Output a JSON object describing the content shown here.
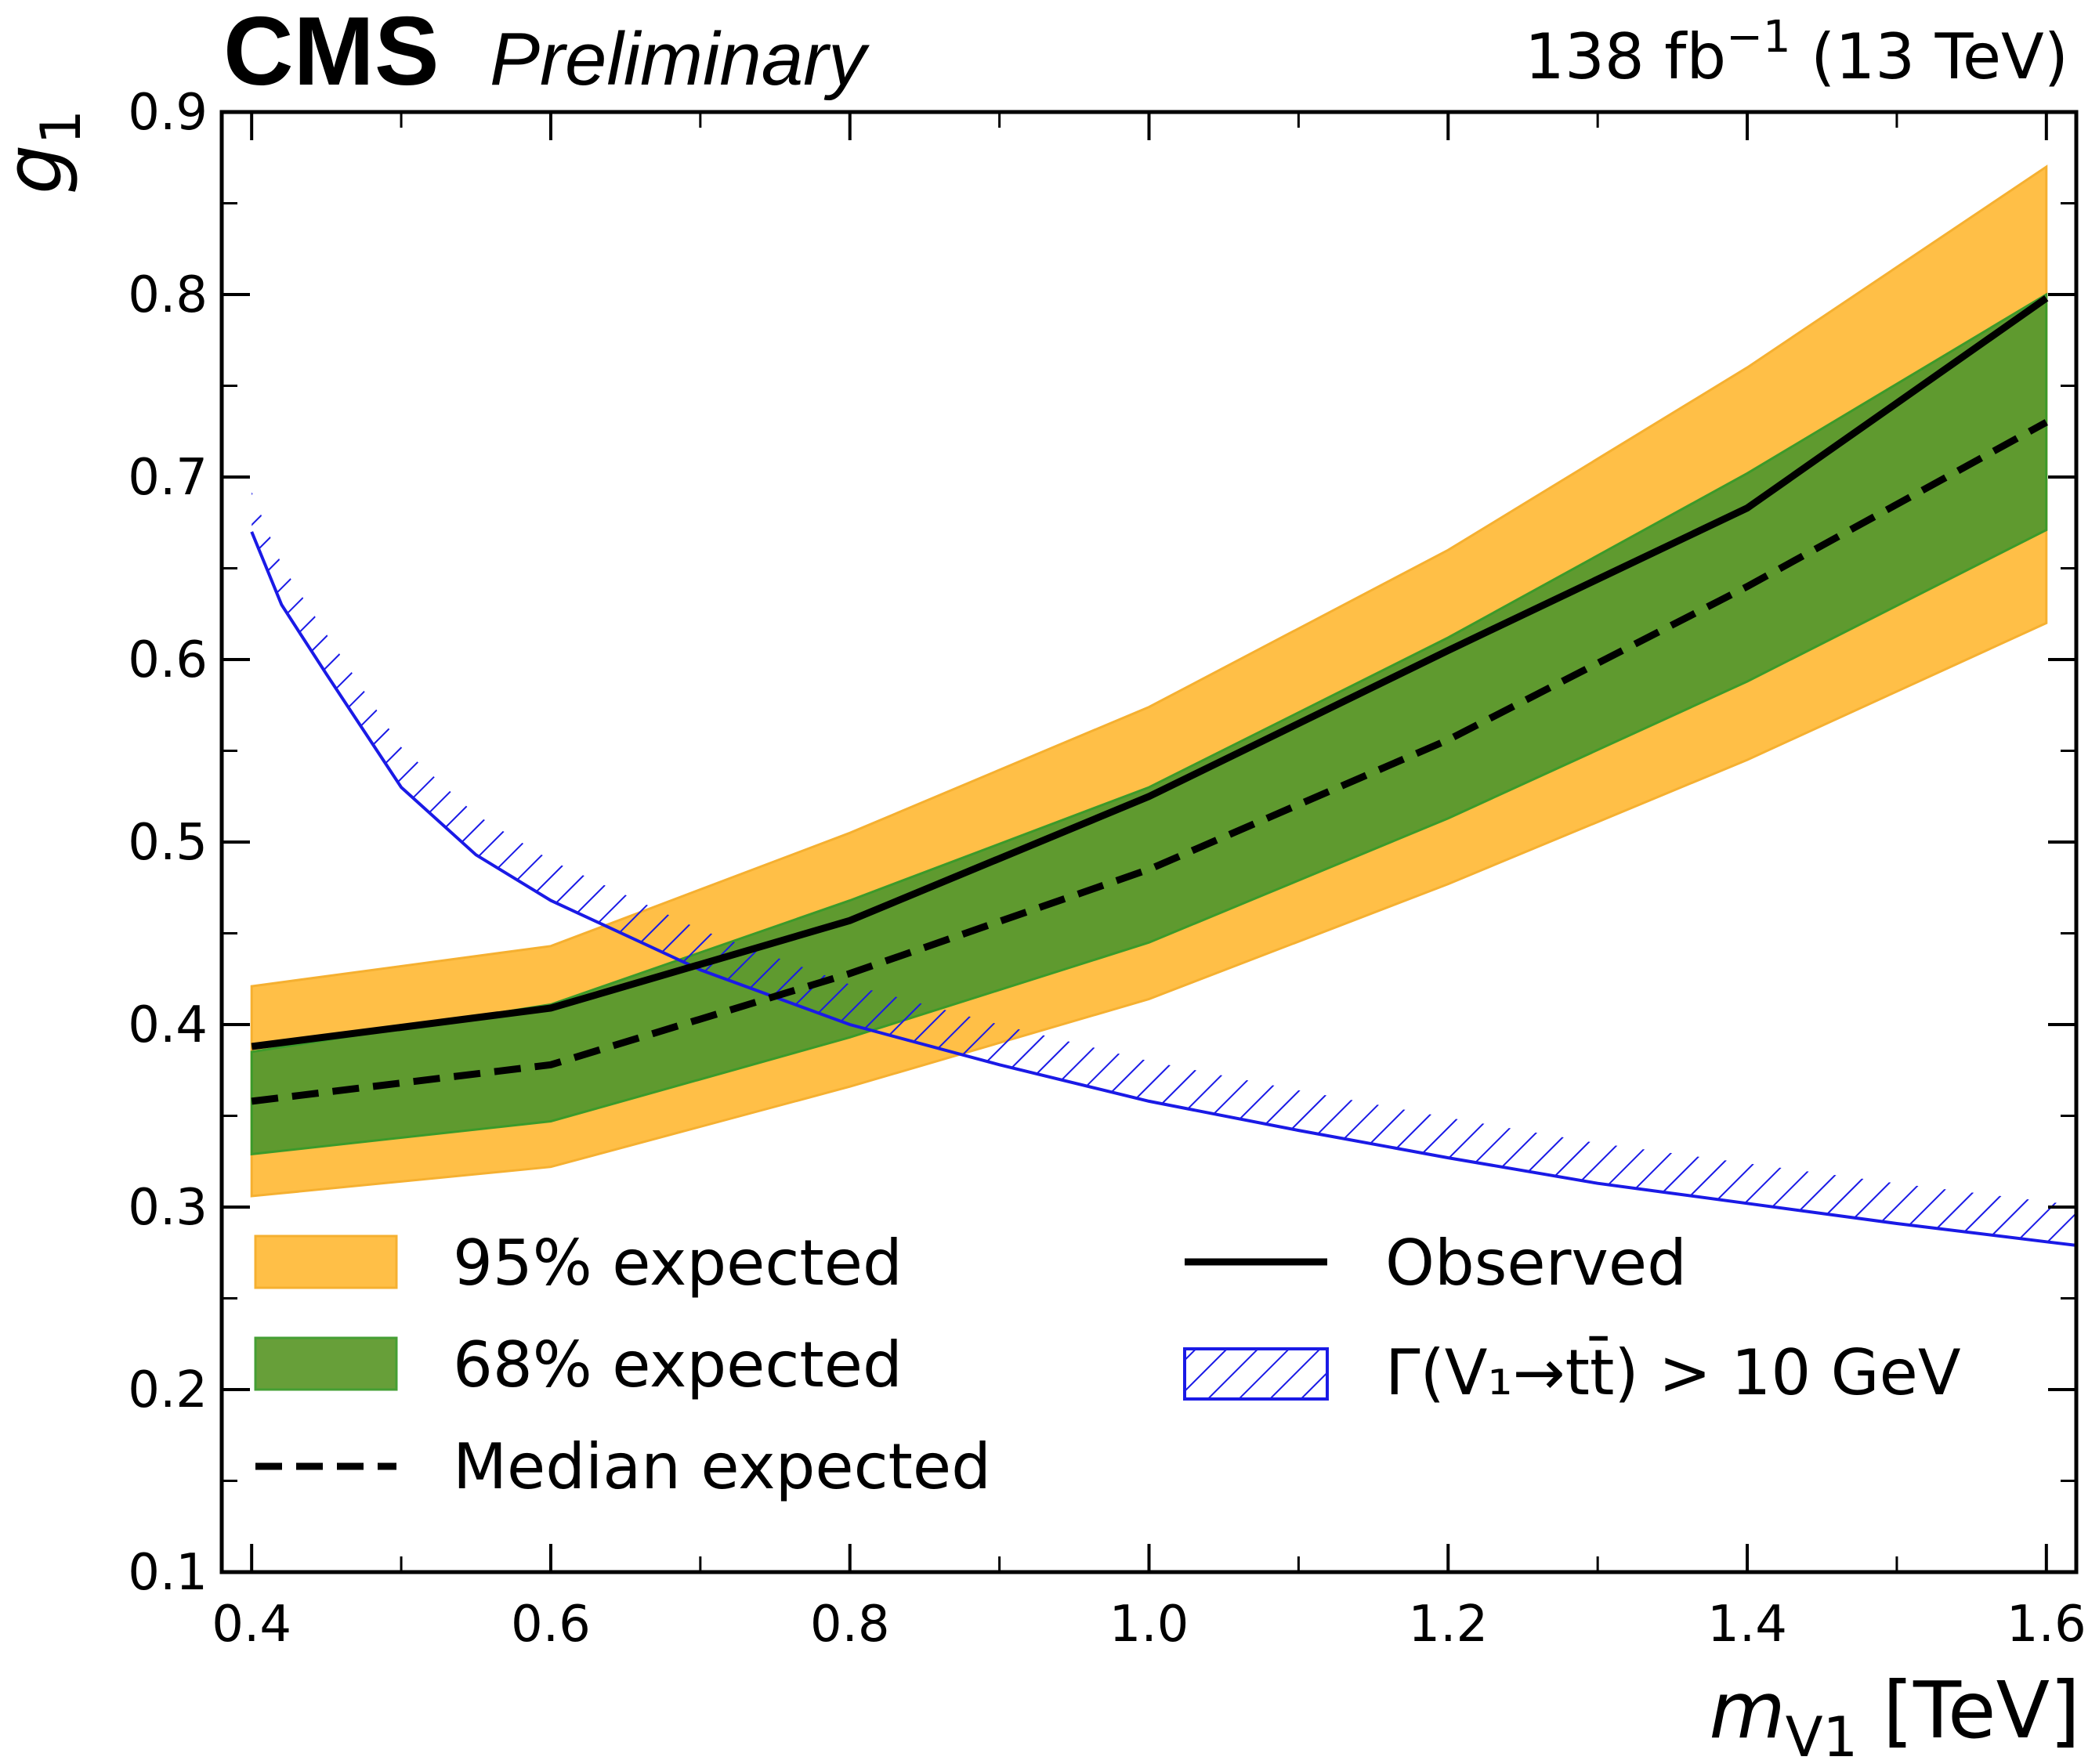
{
  "header": {
    "experiment": "CMS",
    "status": "Preliminary",
    "luminosity_main": "138 fb",
    "luminosity_exp": "−1",
    "energy": "(13 TeV)"
  },
  "colors": {
    "band95": "#FFBF47",
    "band68": "#5F9A2F",
    "band68_edge": "#3C9A2A",
    "band95_edge": "#F5B031",
    "observed": "#000000",
    "median": "#000000",
    "width_hatch": "#1A1AE6"
  },
  "chart_data": {
    "type": "line",
    "xlabel": "m_V1 [TeV]",
    "ylabel": "g_1",
    "xlim": [
      0.38,
      1.62
    ],
    "ylim": [
      0.1,
      0.9
    ],
    "xticks": [
      "0.4",
      "0.6",
      "0.8",
      "1.0",
      "1.2",
      "1.4",
      "1.6"
    ],
    "yticks": [
      "0.1",
      "0.2",
      "0.3",
      "0.4",
      "0.5",
      "0.6",
      "0.7",
      "0.8",
      "0.9"
    ],
    "grid": false,
    "legend_position": "lower",
    "mass": [
      0.4,
      0.6,
      0.8,
      1.0,
      1.2,
      1.4,
      1.6
    ],
    "series": [
      {
        "name": "Observed",
        "values": [
          0.388,
          0.409,
          0.457,
          0.525,
          0.605,
          0.683,
          0.798
        ]
      },
      {
        "name": "Median expected",
        "values": [
          0.358,
          0.378,
          0.428,
          0.485,
          0.556,
          0.64,
          0.73
        ]
      }
    ],
    "bands": [
      {
        "name": "95% expected",
        "lower": [
          0.306,
          0.322,
          0.366,
          0.414,
          0.477,
          0.545,
          0.62
        ],
        "upper": [
          0.421,
          0.443,
          0.505,
          0.574,
          0.66,
          0.76,
          0.87
        ]
      },
      {
        "name": "68% expected",
        "lower": [
          0.329,
          0.347,
          0.393,
          0.445,
          0.513,
          0.588,
          0.671
        ],
        "upper": [
          0.385,
          0.411,
          0.468,
          0.53,
          0.612,
          0.702,
          0.8
        ]
      }
    ],
    "width_limit": {
      "name": "Γ(V₁→tt̄) > 10 GeV",
      "mass": [
        0.4,
        0.42,
        0.45,
        0.5,
        0.55,
        0.6,
        0.7,
        0.8,
        0.9,
        1.0,
        1.1,
        1.2,
        1.3,
        1.4,
        1.5,
        1.6,
        1.62
      ],
      "values": [
        0.67,
        0.63,
        0.592,
        0.53,
        0.493,
        0.468,
        0.43,
        0.4,
        0.378,
        0.358,
        0.342,
        0.327,
        0.313,
        0.302,
        0.291,
        0.281,
        0.279
      ]
    },
    "legend": {
      "band95": "95% expected",
      "band68": "68% expected",
      "median": "Median expected",
      "observed": "Observed",
      "width": "Γ(V₁→tt̄) > 10 GeV"
    }
  }
}
